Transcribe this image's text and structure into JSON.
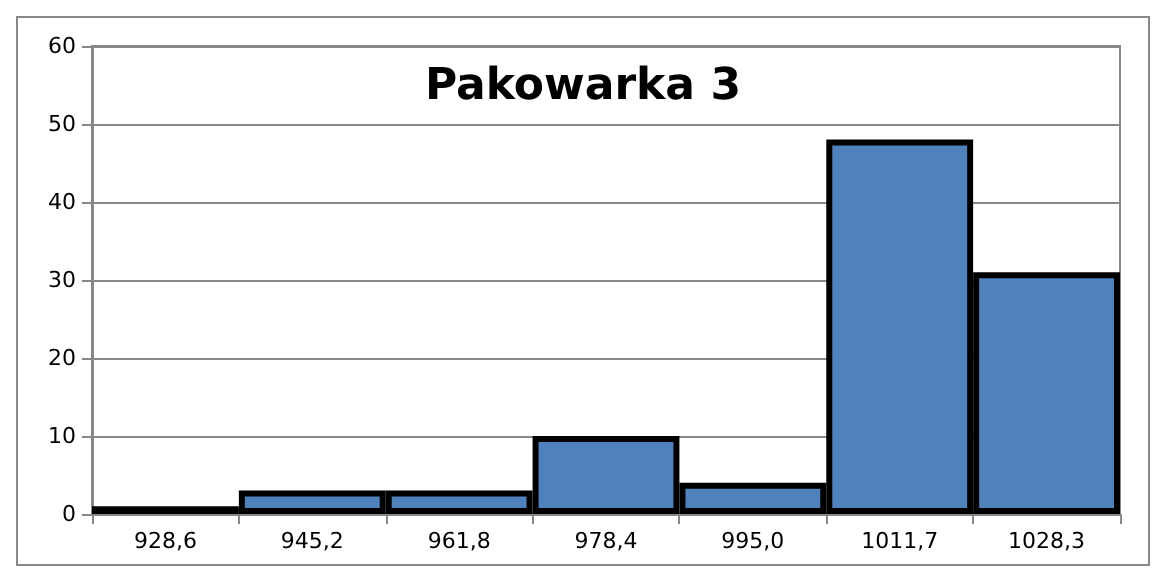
{
  "chart_data": {
    "type": "bar",
    "title": "Pakowarka 3",
    "categories": [
      "928,6",
      "945,2",
      "961,8",
      "978,4",
      "995,0",
      "1011,7",
      "1028,3"
    ],
    "values": [
      1,
      3,
      3,
      10,
      4,
      48,
      31
    ],
    "color": "#4f81bd",
    "ylim": [
      0,
      60
    ],
    "yticks": [
      0,
      10,
      20,
      30,
      40,
      50,
      60
    ],
    "grid": "y"
  }
}
